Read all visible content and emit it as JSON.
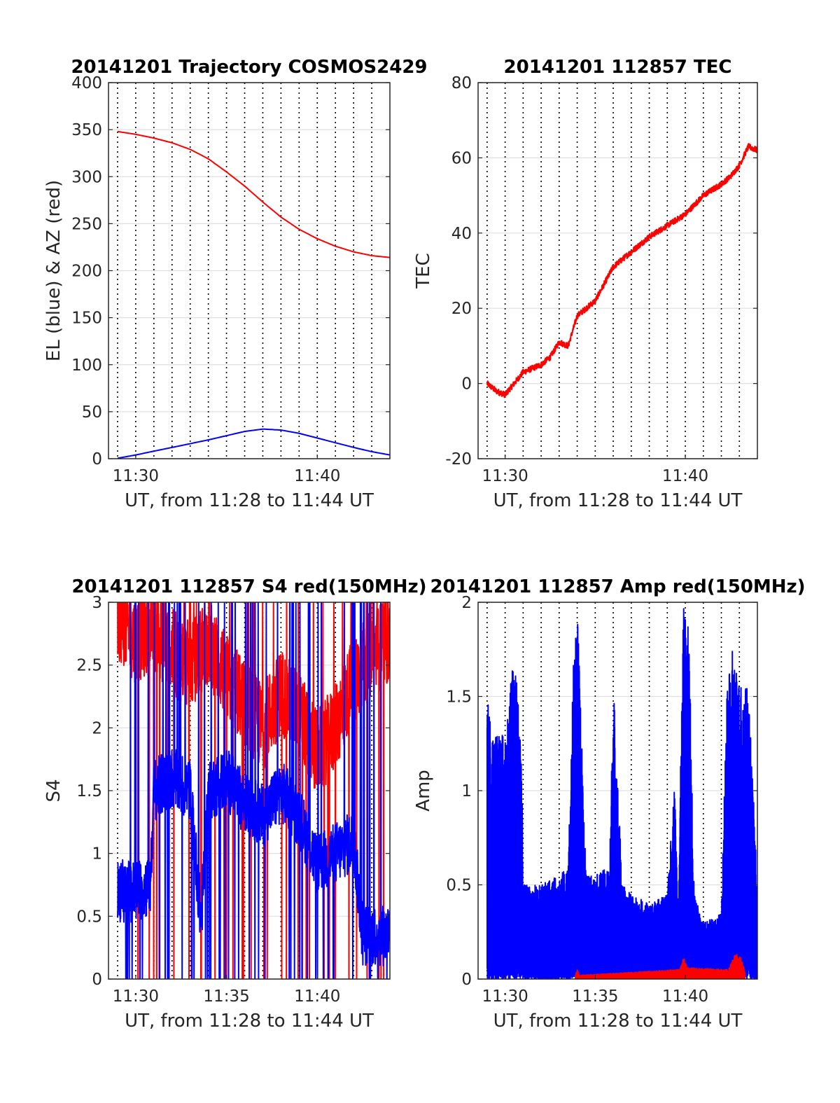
{
  "colors": {
    "red": "#ff0000",
    "blue": "#0000ff",
    "axis": "#262626",
    "grid": "#dfdfdf"
  },
  "chart_data": [
    {
      "type": "line",
      "title": "20141201 Trajectory COSMOS2429",
      "xlabel": "UT, from 11:28 to 11:44 UT",
      "ylabel": "EL (blue) & AZ (red)",
      "x_unit": "minutes after 11:00 UT",
      "xlim": [
        28.5,
        44
      ],
      "ylim": [
        0,
        400
      ],
      "yticks": [
        0,
        50,
        100,
        150,
        200,
        250,
        300,
        350,
        400
      ],
      "ytick_labels": [
        "0",
        "50",
        "100",
        "150",
        "200",
        "250",
        "300",
        "350",
        "400"
      ],
      "xticks": [
        30,
        40
      ],
      "xtick_labels": [
        "11:30",
        "11:40"
      ],
      "vgrid": [
        29,
        30,
        31,
        32,
        33,
        34,
        35,
        36,
        37,
        38,
        39,
        40,
        41,
        42,
        43
      ],
      "series": [
        {
          "name": "AZ",
          "color": "#ff0000",
          "x": [
            29,
            30,
            31,
            32,
            33,
            34,
            35,
            36,
            37,
            38,
            39,
            40,
            41,
            42,
            43,
            44
          ],
          "y": [
            348,
            345,
            341,
            336,
            329,
            319,
            305,
            290,
            273,
            257,
            244,
            234,
            226,
            220,
            216,
            214
          ]
        },
        {
          "name": "EL",
          "color": "#0000ff",
          "x": [
            29,
            30,
            31,
            32,
            33,
            34,
            35,
            36,
            37,
            38,
            39,
            40,
            41,
            42,
            43,
            44
          ],
          "y": [
            0.5,
            4,
            8,
            12,
            16,
            20,
            24.5,
            29,
            31.5,
            30.5,
            27,
            22,
            17,
            12,
            7.5,
            4
          ]
        }
      ]
    },
    {
      "type": "line",
      "title": "20141201 112857 TEC",
      "xlabel": "UT, from 11:28 to 11:44 UT",
      "ylabel": "TEC",
      "x_unit": "minutes after 11:00 UT",
      "xlim": [
        28.5,
        44
      ],
      "ylim": [
        -20,
        80
      ],
      "yticks": [
        -20,
        0,
        20,
        40,
        60,
        80
      ],
      "ytick_labels": [
        "-20",
        "0",
        "20",
        "40",
        "60",
        "80"
      ],
      "xticks": [
        30,
        40
      ],
      "xtick_labels": [
        "11:30",
        "11:40"
      ],
      "vgrid": [
        29,
        30,
        31,
        32,
        33,
        34,
        35,
        36,
        37,
        38,
        39,
        40,
        41,
        42,
        43
      ],
      "series": [
        {
          "name": "TEC",
          "color": "#ff0000",
          "noisy": true,
          "noise": 0.8,
          "x": [
            29,
            29.5,
            30,
            31,
            32,
            32.5,
            33,
            33.5,
            34,
            35,
            36,
            37,
            38,
            39,
            40,
            41,
            42,
            42.5,
            43,
            43.5,
            44
          ],
          "y": [
            0,
            -2,
            -3,
            3,
            5,
            7,
            11,
            10,
            18,
            22,
            31,
            35,
            39,
            42,
            45,
            50,
            53,
            55,
            58,
            63,
            62
          ]
        }
      ]
    },
    {
      "type": "line",
      "title": "20141201 112857 S4 red(150MHz)",
      "xlabel": "UT, from 11:28 to 11:44 UT",
      "ylabel": "S4",
      "x_unit": "minutes after 11:00 UT",
      "xlim": [
        28.5,
        44
      ],
      "ylim": [
        0,
        3
      ],
      "yticks": [
        0,
        0.5,
        1,
        1.5,
        2,
        2.5,
        3
      ],
      "ytick_labels": [
        "0",
        "0.5",
        "1",
        "1.5",
        "2",
        "2.5",
        "3"
      ],
      "xticks": [
        30,
        35,
        40
      ],
      "xtick_labels": [
        "11:30",
        "11:35",
        "11:40"
      ],
      "vgrid": [
        29,
        30,
        31,
        32,
        33,
        34,
        35,
        36,
        37,
        38,
        39,
        40,
        41,
        42,
        43
      ],
      "series": [
        {
          "name": "S4 red",
          "color": "#ff0000",
          "noisy": true,
          "noise": 0.35,
          "x": [
            29,
            30,
            31,
            32,
            33,
            34,
            35,
            36,
            37,
            38,
            39,
            40,
            41,
            42,
            43,
            44
          ],
          "y": [
            2.9,
            2.7,
            2.8,
            2.6,
            2.5,
            2.7,
            2.4,
            2.2,
            2.0,
            2.3,
            2.1,
            1.8,
            2.0,
            2.4,
            2.6,
            2.7
          ]
        },
        {
          "name": "S4 blue",
          "color": "#0000ff",
          "noisy": true,
          "noise": 0.25,
          "x": [
            29,
            30,
            30.8,
            31,
            32,
            33,
            33.6,
            34,
            35,
            36,
            37,
            38,
            39,
            40,
            41,
            42,
            42.5,
            43,
            44
          ],
          "y": [
            0.7,
            0.7,
            0.75,
            1.5,
            1.6,
            1.5,
            0.45,
            1.5,
            1.6,
            1.4,
            1.3,
            1.5,
            1.3,
            0.9,
            1.0,
            1.1,
            0.35,
            0.35,
            0.35
          ]
        }
      ]
    },
    {
      "type": "line",
      "title": "20141201 112857 Amp red(150MHz)",
      "xlabel": "UT, from 11:28 to 11:44 UT",
      "ylabel": "Amp",
      "x_unit": "minutes after 11:00 UT",
      "xlim": [
        28.5,
        44
      ],
      "ylim": [
        0,
        2
      ],
      "yticks": [
        0,
        0.5,
        1,
        1.5,
        2
      ],
      "ytick_labels": [
        "0",
        "0.5",
        "1",
        "1.5",
        "2"
      ],
      "xticks": [
        30,
        35,
        40
      ],
      "xtick_labels": [
        "11:30",
        "11:35",
        "11:40"
      ],
      "vgrid": [
        29,
        30,
        31,
        32,
        33,
        34,
        35,
        36,
        37,
        38,
        39,
        40,
        41,
        42,
        43
      ],
      "series": [
        {
          "name": "Amp blue",
          "color": "#0000ff",
          "envelope": true,
          "x": [
            29,
            29.3,
            29.6,
            30,
            30.5,
            30.9,
            31,
            32,
            33,
            33.5,
            33.8,
            34,
            34.5,
            35,
            35.8,
            36,
            36.5,
            37,
            38,
            39,
            39.4,
            39.6,
            39.9,
            40.2,
            40.5,
            41,
            42,
            42.3,
            42.6,
            43,
            43.5,
            44
          ],
          "y": [
            1.5,
            1.3,
            1.3,
            1.3,
            1.75,
            1.3,
            0.5,
            0.5,
            0.55,
            0.6,
            1.7,
            1.98,
            0.55,
            0.55,
            0.6,
            1.6,
            0.5,
            0.45,
            0.4,
            0.45,
            1.05,
            0.4,
            1.98,
            1.85,
            0.45,
            0.3,
            0.35,
            1.5,
            1.75,
            1.6,
            1.55,
            0.5
          ]
        },
        {
          "name": "Amp red",
          "color": "#ff0000",
          "envelope": true,
          "x": [
            33.9,
            34.0,
            34.1,
            39.7,
            39.9,
            40.1,
            42.4,
            42.8,
            43.1,
            43.3
          ],
          "y": [
            0.02,
            0.05,
            0.02,
            0.05,
            0.12,
            0.06,
            0.05,
            0.14,
            0.12,
            0.04
          ]
        }
      ]
    }
  ]
}
